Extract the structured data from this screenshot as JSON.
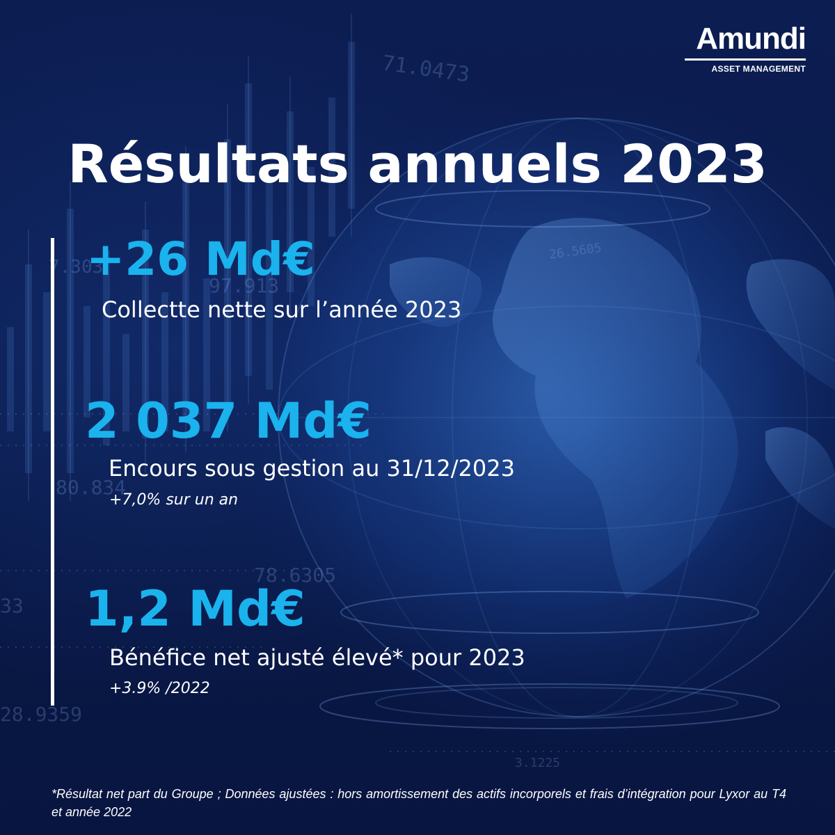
{
  "brand": {
    "name": "Amundi",
    "tagline": "ASSET MANAGEMENT",
    "accent_color": "#1ab3ee",
    "background_color": "#0b1b4a",
    "text_color": "#ffffff"
  },
  "title": "Résultats annuels 2023",
  "kpis": [
    {
      "value": "+26 Md€",
      "label": "Collectte nette sur l’année 2023",
      "note": ""
    },
    {
      "value": "2 037 Md€",
      "label": "Encours sous gestion au 31/12/2023",
      "note": "+7,0% sur un an"
    },
    {
      "value": "1,2 Md€",
      "label": "Bénéfice net ajusté élevé* pour 2023",
      "note": "+3.9% /2022"
    }
  ],
  "footnote": "*Résultat net part du Groupe ; Données ajustées : hors amortissement des actifs incorporels et frais d’intégration pour Lyxor au T4 et année 2022",
  "background_ticker_numbers": [
    "71.0473",
    "7.303",
    "97.913",
    "26.5605",
    "80.834",
    "78.6305",
    "28.9359",
    "3.1225",
    "33"
  ]
}
